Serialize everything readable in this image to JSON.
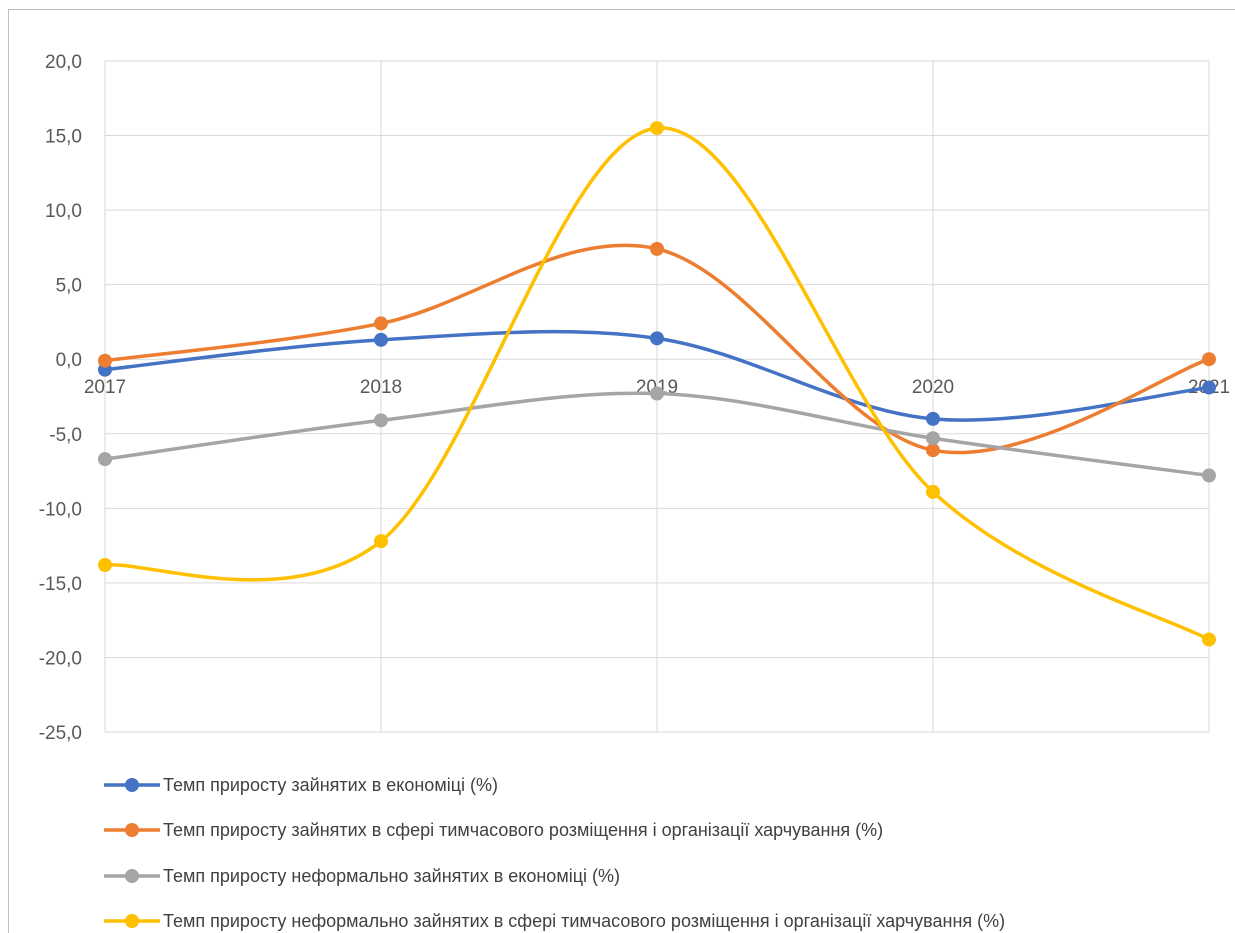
{
  "chart_data": {
    "type": "line",
    "smooth": true,
    "categories": [
      "2017",
      "2018",
      "2019",
      "2020",
      "2021"
    ],
    "ylim": [
      -25,
      20
    ],
    "yticks": [
      20,
      15,
      10,
      5,
      0,
      -5,
      -10,
      -15,
      -20,
      -25
    ],
    "ytick_labels": [
      "20,0",
      "15,0",
      "10,0",
      "5,0",
      "0,0",
      "-5,0",
      "-10,0",
      "-15,0",
      "-20,0",
      "-25,0"
    ],
    "grid": true,
    "legend_position": "bottom",
    "series": [
      {
        "name": "Темп приросту зайнятих в економіці (%)",
        "color": "#4472c4",
        "values": [
          -0.7,
          1.3,
          1.4,
          -4.0,
          -1.9
        ]
      },
      {
        "name": "Темп приросту зайнятих в сфері тимчасового розміщення і організації харчування (%)",
        "color": "#ed7d31",
        "values": [
          -0.1,
          2.4,
          7.4,
          -6.1,
          0.0
        ]
      },
      {
        "name": "Темп приросту неформально зайнятих в економіці (%)",
        "color": "#a5a5a5",
        "values": [
          -6.7,
          -4.1,
          -2.3,
          -5.3,
          -7.8
        ]
      },
      {
        "name": "Темп приросту неформально зайнятих в сфері тимчасового розміщення і організації харчування (%)",
        "color": "#ffc000",
        "values": [
          -13.8,
          -12.2,
          15.5,
          -8.9,
          -18.8
        ]
      }
    ]
  }
}
